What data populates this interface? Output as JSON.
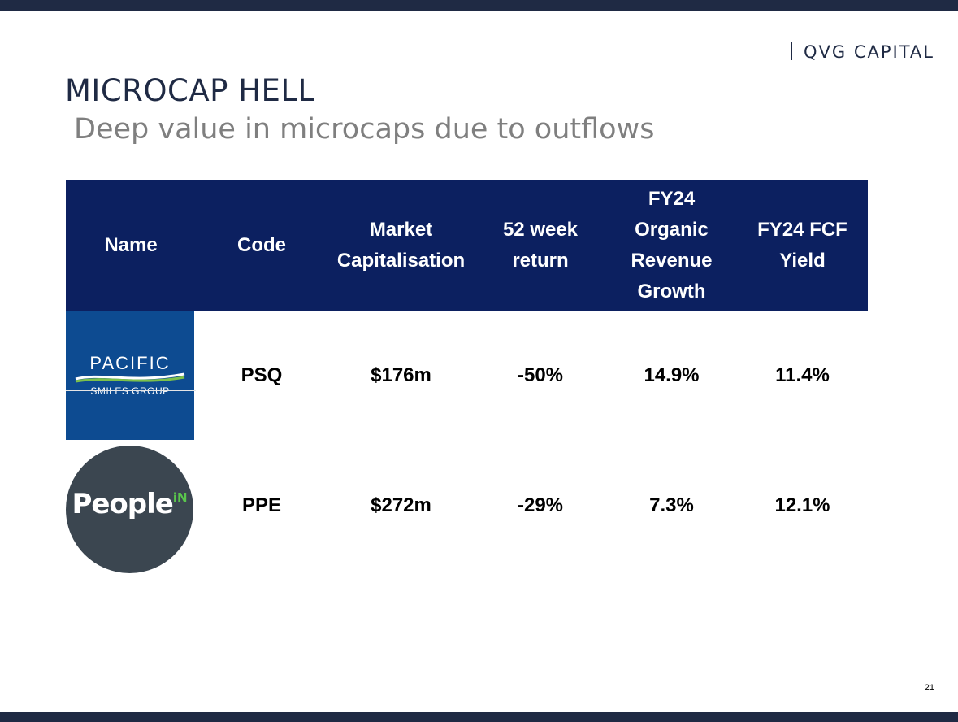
{
  "brand": {
    "name": "QVG CAPITAL"
  },
  "slide": {
    "title": "MICROCAP HELL",
    "subtitle": "Deep value in microcaps due to outflows",
    "page_number": "21"
  },
  "table": {
    "headers": {
      "name": "Name",
      "code": "Code",
      "market_cap": [
        "Market",
        "Capitalisation"
      ],
      "return_52w": [
        "52 week",
        "return"
      ],
      "revenue_growth": [
        "FY24",
        "Organic",
        "Revenue",
        "Growth"
      ],
      "fcf_yield": [
        "FY24 FCF",
        "Yield"
      ]
    },
    "rows": [
      {
        "logo": {
          "icon": "pacific-smiles-group-logo",
          "wordmark": "PACIFIC",
          "subtext": "SMILES GROUP",
          "background": "#0d4b91"
        },
        "code": "PSQ",
        "market_cap": "$176m",
        "return_52w": "-50%",
        "revenue_growth": "14.9%",
        "fcf_yield": "11.4%"
      },
      {
        "logo": {
          "icon": "peoplein-logo",
          "wordmark": "People",
          "wordmark_suffix": "iN",
          "background": "#3b4650",
          "accent": "#5ac64c"
        },
        "code": "PPE",
        "market_cap": "$272m",
        "return_52w": "-29%",
        "revenue_growth": "7.3%",
        "fcf_yield": "12.1%"
      }
    ]
  },
  "colors": {
    "header_background": "#0c2060",
    "frame_bar": "#1f2a44",
    "subtitle_gray": "#7f7f7f"
  }
}
